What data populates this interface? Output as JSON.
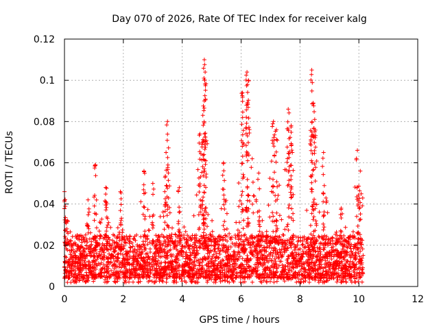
{
  "chart_data": {
    "type": "scatter",
    "title": "Day 070 of 2026, Rate Of TEC Index for receiver kalg",
    "xlabel": "GPS time / hours",
    "ylabel": "ROTI / TECUs",
    "xlim": [
      0,
      12
    ],
    "ylim": [
      0,
      0.12
    ],
    "x_ticks": [
      0,
      2,
      4,
      6,
      8,
      10,
      12
    ],
    "x_tick_labels": [
      "0",
      "2",
      "4",
      "6",
      "8",
      "10",
      "12"
    ],
    "y_ticks": [
      0,
      0.02,
      0.04,
      0.06,
      0.08,
      0.1,
      0.12
    ],
    "y_tick_labels": [
      "0",
      "0.02",
      "0.04",
      "0.06",
      "0.08",
      "0.1",
      "0.12"
    ],
    "grid": true,
    "marker": "+",
    "color": "#ff0000",
    "series": [
      {
        "name": "ROTI",
        "data_coverage_hours": [
          0,
          10.15
        ],
        "typical_range": [
          0.002,
          0.03
        ],
        "peaks": [
          {
            "x": 0.0,
            "y": 0.046
          },
          {
            "x": 0.1,
            "y": 0.032
          },
          {
            "x": 0.8,
            "y": 0.042
          },
          {
            "x": 1.05,
            "y": 0.059
          },
          {
            "x": 1.4,
            "y": 0.048
          },
          {
            "x": 1.9,
            "y": 0.046
          },
          {
            "x": 2.7,
            "y": 0.056
          },
          {
            "x": 3.0,
            "y": 0.05
          },
          {
            "x": 3.5,
            "y": 0.08
          },
          {
            "x": 3.45,
            "y": 0.065
          },
          {
            "x": 3.9,
            "y": 0.048
          },
          {
            "x": 4.6,
            "y": 0.074
          },
          {
            "x": 4.7,
            "y": 0.083
          },
          {
            "x": 4.75,
            "y": 0.11
          },
          {
            "x": 4.78,
            "y": 0.104
          },
          {
            "x": 5.4,
            "y": 0.06
          },
          {
            "x": 6.05,
            "y": 0.094
          },
          {
            "x": 6.2,
            "y": 0.104
          },
          {
            "x": 6.25,
            "y": 0.1
          },
          {
            "x": 6.6,
            "y": 0.055
          },
          {
            "x": 7.1,
            "y": 0.08
          },
          {
            "x": 7.2,
            "y": 0.076
          },
          {
            "x": 7.6,
            "y": 0.086
          },
          {
            "x": 7.7,
            "y": 0.078
          },
          {
            "x": 8.4,
            "y": 0.105
          },
          {
            "x": 8.45,
            "y": 0.089
          },
          {
            "x": 8.5,
            "y": 0.081
          },
          {
            "x": 8.8,
            "y": 0.065
          },
          {
            "x": 9.4,
            "y": 0.038
          },
          {
            "x": 9.95,
            "y": 0.066
          },
          {
            "x": 10.05,
            "y": 0.056
          }
        ]
      }
    ]
  }
}
